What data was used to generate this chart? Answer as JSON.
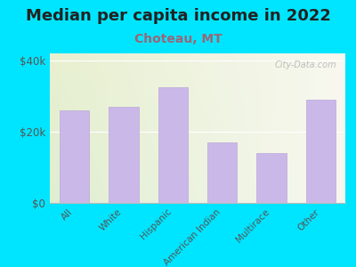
{
  "title": "Median per capita income in 2022",
  "subtitle": "Choteau, MT",
  "categories": [
    "All",
    "White",
    "Hispanic",
    "American Indian",
    "Multirace",
    "Other"
  ],
  "values": [
    26000,
    27000,
    32500,
    17000,
    14000,
    29000
  ],
  "bar_color": "#c9b8e8",
  "bar_edge_color": "#bba8d8",
  "background_outer": "#00e5ff",
  "bg_top_left": "#e8f0d0",
  "bg_top_right": "#f8f8f0",
  "bg_bottom": "#e0eed0",
  "ylim": [
    0,
    42000
  ],
  "yticks": [
    0,
    20000,
    40000
  ],
  "ytick_labels": [
    "$0",
    "$20k",
    "$40k"
  ],
  "title_fontsize": 13,
  "subtitle_fontsize": 10,
  "subtitle_color": "#996677",
  "watermark": "City-Data.com",
  "watermark_color": "#aaaaaa"
}
